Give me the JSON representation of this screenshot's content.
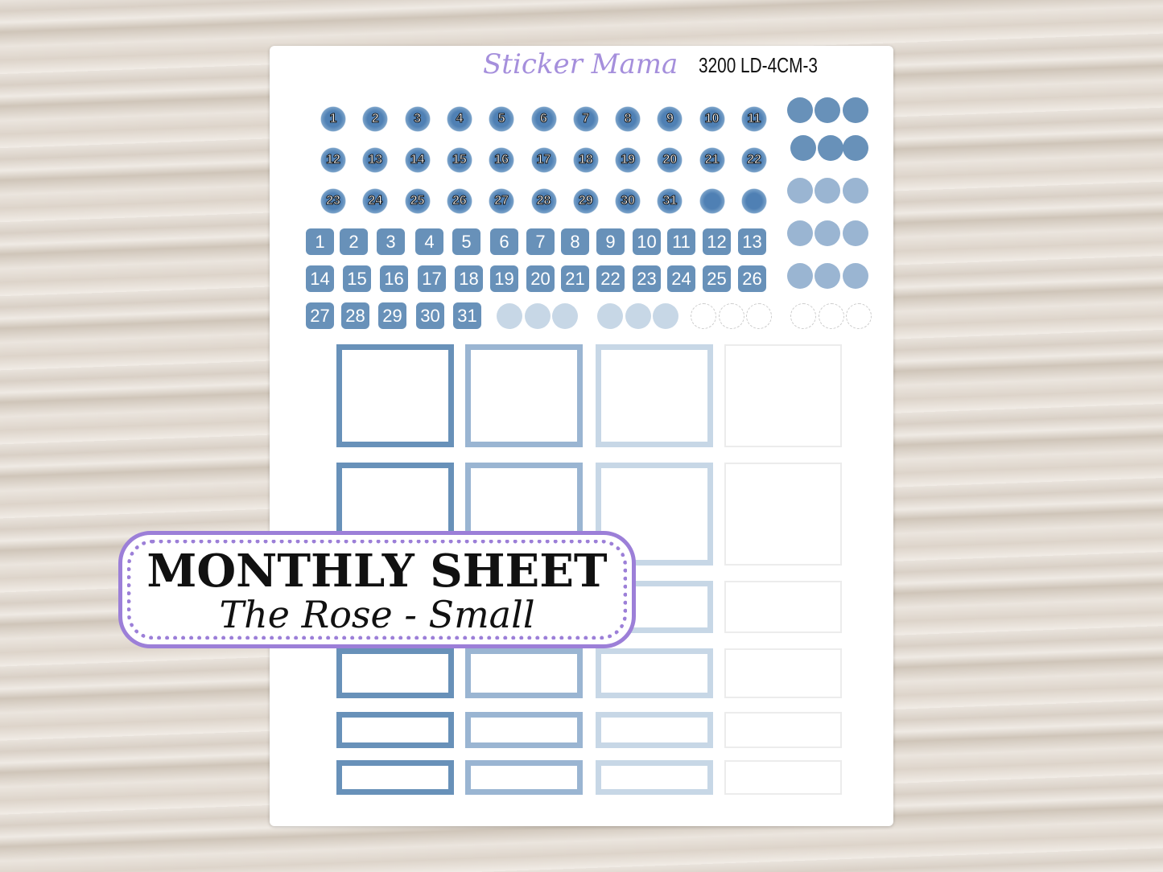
{
  "brand": "Sticker Mama",
  "product_code": "3200 LD-4CM-3",
  "flower_numbers": [
    "1",
    "2",
    "3",
    "4",
    "5",
    "6",
    "7",
    "8",
    "9",
    "10",
    "11",
    "12",
    "13",
    "14",
    "15",
    "16",
    "17",
    "18",
    "19",
    "20",
    "21",
    "22",
    "23",
    "24",
    "25",
    "26",
    "27",
    "28",
    "29",
    "30",
    "31"
  ],
  "square_numbers": [
    "1",
    "2",
    "3",
    "4",
    "5",
    "6",
    "7",
    "8",
    "9",
    "10",
    "11",
    "12",
    "13",
    "14",
    "15",
    "16",
    "17",
    "18",
    "19",
    "20",
    "21",
    "22",
    "23",
    "24",
    "25",
    "26",
    "27",
    "28",
    "29",
    "30",
    "31"
  ],
  "colors": {
    "dark": "#6891b9",
    "medium": "#9ab5d2",
    "light": "#c7d7e6",
    "blank": "#ececec",
    "accent": "#9c7fd8",
    "flower": "#4f80b4"
  },
  "banner": {
    "title": "MONTHLY SHEET",
    "subtitle": "The Rose - Small"
  }
}
